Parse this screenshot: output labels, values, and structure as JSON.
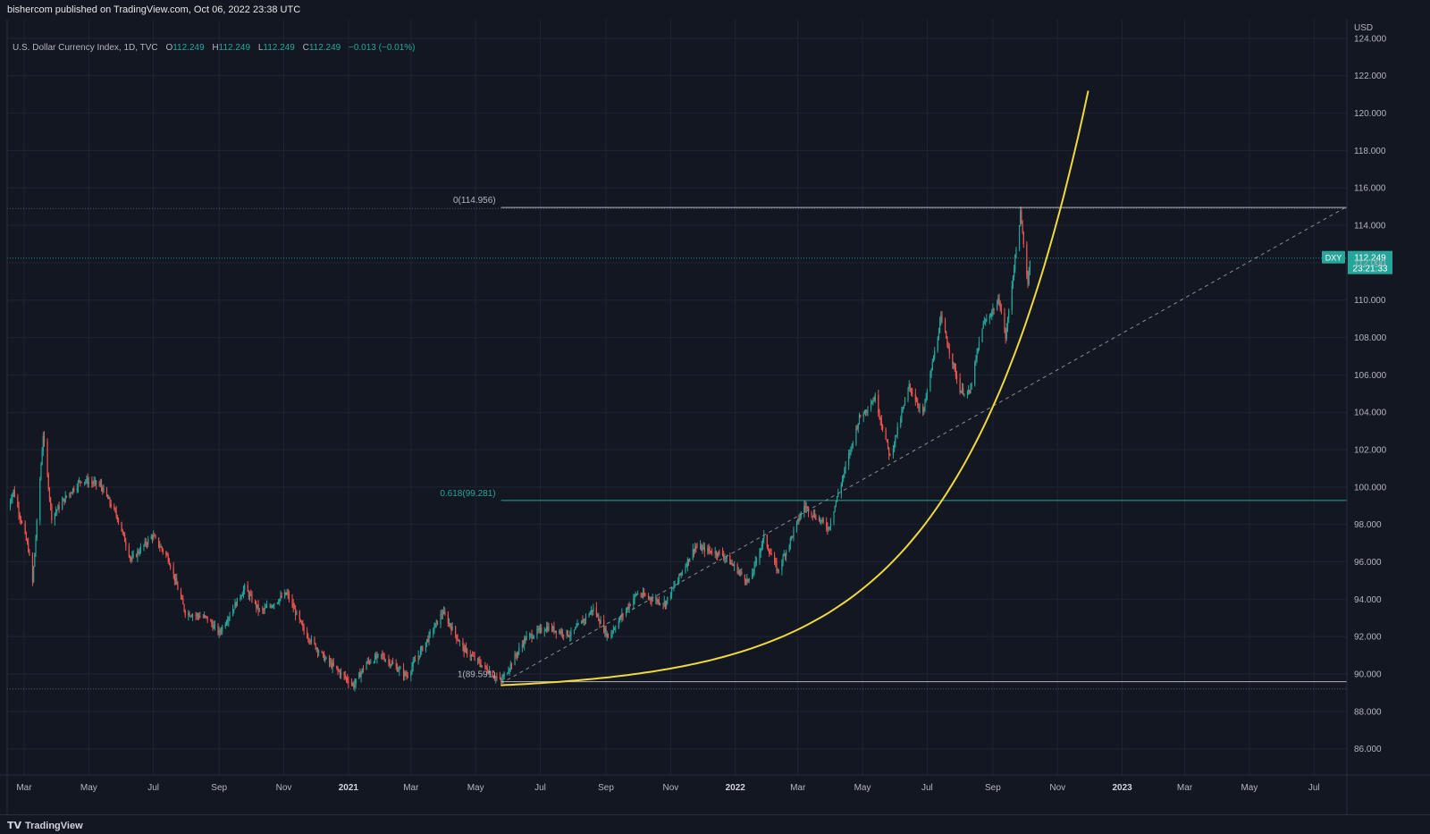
{
  "header": {
    "publisher": "bishercom published on TradingView.com, Oct 06, 2022 23:38 UTC"
  },
  "legend": {
    "symbol": "U.S. Dollar Currency Index, 1D, TVC",
    "o_label": "O",
    "o": "112.249",
    "h_label": "H",
    "h": "112.249",
    "l_label": "L",
    "l": "112.249",
    "c_label": "C",
    "c": "112.249",
    "change": "−0.013 (−0.01%)"
  },
  "footer": {
    "brand": "TradingView",
    "brand_icon": "tradingview-logo-icon"
  },
  "colors": {
    "background": "#131722",
    "grid": "#1f2433",
    "axis_text": "#b2b5be",
    "up": "#26a69a",
    "down": "#ef5350",
    "curve": "#f0d93e",
    "fib": "#26a69a",
    "price_tag": "#26a69a"
  },
  "chart_data": {
    "type": "candlestick",
    "currency_label": "USD",
    "y_ticks": [
      "124.000",
      "122.000",
      "120.000",
      "118.000",
      "116.000",
      "114.000",
      "112.000",
      "110.000",
      "108.000",
      "106.000",
      "104.000",
      "102.000",
      "100.000",
      "98.000",
      "96.000",
      "94.000",
      "92.000",
      "90.000",
      "88.000",
      "86.000"
    ],
    "y_range": [
      84.6,
      125.0
    ],
    "x_range": [
      "2020-02-14",
      "2023-08-01"
    ],
    "x_ticks": [
      {
        "label": "Mar",
        "date": "2020-03-01",
        "bold": false
      },
      {
        "label": "May",
        "date": "2020-05-01",
        "bold": false
      },
      {
        "label": "Jul",
        "date": "2020-07-01",
        "bold": false
      },
      {
        "label": "Sep",
        "date": "2020-09-01",
        "bold": false
      },
      {
        "label": "Nov",
        "date": "2020-11-01",
        "bold": false
      },
      {
        "label": "2021",
        "date": "2021-01-01",
        "bold": true
      },
      {
        "label": "Mar",
        "date": "2021-03-01",
        "bold": false
      },
      {
        "label": "May",
        "date": "2021-05-01",
        "bold": false
      },
      {
        "label": "Jul",
        "date": "2021-07-01",
        "bold": false
      },
      {
        "label": "Sep",
        "date": "2021-09-01",
        "bold": false
      },
      {
        "label": "Nov",
        "date": "2021-11-01",
        "bold": false
      },
      {
        "label": "2022",
        "date": "2022-01-01",
        "bold": true
      },
      {
        "label": "Mar",
        "date": "2022-03-01",
        "bold": false
      },
      {
        "label": "May",
        "date": "2022-05-01",
        "bold": false
      },
      {
        "label": "Jul",
        "date": "2022-07-01",
        "bold": false
      },
      {
        "label": "Sep",
        "date": "2022-09-01",
        "bold": false
      },
      {
        "label": "Nov",
        "date": "2022-11-01",
        "bold": false
      },
      {
        "label": "2023",
        "date": "2023-01-01",
        "bold": true
      },
      {
        "label": "Mar",
        "date": "2023-03-01",
        "bold": false
      },
      {
        "label": "May",
        "date": "2023-05-01",
        "bold": false
      },
      {
        "label": "Jul",
        "date": "2023-07-01",
        "bold": false
      }
    ],
    "price_path": [
      [
        "2020-02-14",
        98.9
      ],
      [
        "2020-02-20",
        99.8
      ],
      [
        "2020-03-05",
        96.7
      ],
      [
        "2020-03-09",
        94.9
      ],
      [
        "2020-03-19",
        102.8
      ],
      [
        "2020-03-27",
        98.4
      ],
      [
        "2020-04-10",
        99.5
      ],
      [
        "2020-04-24",
        100.4
      ],
      [
        "2020-05-12",
        100.1
      ],
      [
        "2020-05-28",
        98.4
      ],
      [
        "2020-06-10",
        96.1
      ],
      [
        "2020-06-30",
        97.4
      ],
      [
        "2020-07-15",
        96.2
      ],
      [
        "2020-07-31",
        93.3
      ],
      [
        "2020-08-20",
        93.0
      ],
      [
        "2020-09-01",
        92.2
      ],
      [
        "2020-09-25",
        94.6
      ],
      [
        "2020-10-10",
        93.3
      ],
      [
        "2020-11-04",
        94.3
      ],
      [
        "2020-11-20",
        92.3
      ],
      [
        "2020-12-10",
        90.8
      ],
      [
        "2021-01-06",
        89.4
      ],
      [
        "2021-01-18",
        90.6
      ],
      [
        "2021-02-01",
        91.0
      ],
      [
        "2021-02-25",
        89.9
      ],
      [
        "2021-03-31",
        93.3
      ],
      [
        "2021-04-20",
        91.3
      ],
      [
        "2021-05-25",
        89.6
      ],
      [
        "2021-06-17",
        91.9
      ],
      [
        "2021-07-07",
        92.5
      ],
      [
        "2021-07-30",
        92.1
      ],
      [
        "2021-08-20",
        93.5
      ],
      [
        "2021-09-03",
        92.0
      ],
      [
        "2021-09-30",
        94.3
      ],
      [
        "2021-10-27",
        93.8
      ],
      [
        "2021-11-24",
        96.8
      ],
      [
        "2021-12-20",
        96.4
      ],
      [
        "2022-01-14",
        94.9
      ],
      [
        "2022-01-28",
        97.3
      ],
      [
        "2022-02-10",
        95.5
      ],
      [
        "2022-03-07",
        99.0
      ],
      [
        "2022-03-30",
        97.8
      ],
      [
        "2022-04-28",
        103.7
      ],
      [
        "2022-05-13",
        104.8
      ],
      [
        "2022-05-27",
        101.6
      ],
      [
        "2022-06-14",
        105.4
      ],
      [
        "2022-06-27",
        103.9
      ],
      [
        "2022-07-14",
        109.0
      ],
      [
        "2022-08-01",
        105.2
      ],
      [
        "2022-08-10",
        105.0
      ],
      [
        "2022-08-22",
        108.6
      ],
      [
        "2022-09-07",
        110.0
      ],
      [
        "2022-09-13",
        108.0
      ],
      [
        "2022-09-27",
        114.6
      ],
      [
        "2022-10-04",
        110.9
      ],
      [
        "2022-10-06",
        112.25
      ]
    ],
    "last_price": {
      "symbol": "DXY",
      "value": "112.249",
      "countdown": "23:21:33"
    },
    "annotations": {
      "fib_0": {
        "label": "0(114.956)",
        "value": 114.956
      },
      "fib_0618": {
        "label": "0.618(99.281)",
        "value": 99.281
      },
      "fib_1": {
        "label": "1(89.591)",
        "value": 89.591
      },
      "parabolic_curve": {
        "start": [
          "2021-05-25",
          89.4
        ],
        "end": [
          "2022-11-30",
          121.2
        ]
      },
      "trend_line": {
        "start": [
          "2021-05-25",
          89.5
        ],
        "end": [
          "2023-08-01",
          115.0
        ]
      }
    },
    "reference_lines": [
      114.9,
      112.249,
      89.2
    ]
  }
}
